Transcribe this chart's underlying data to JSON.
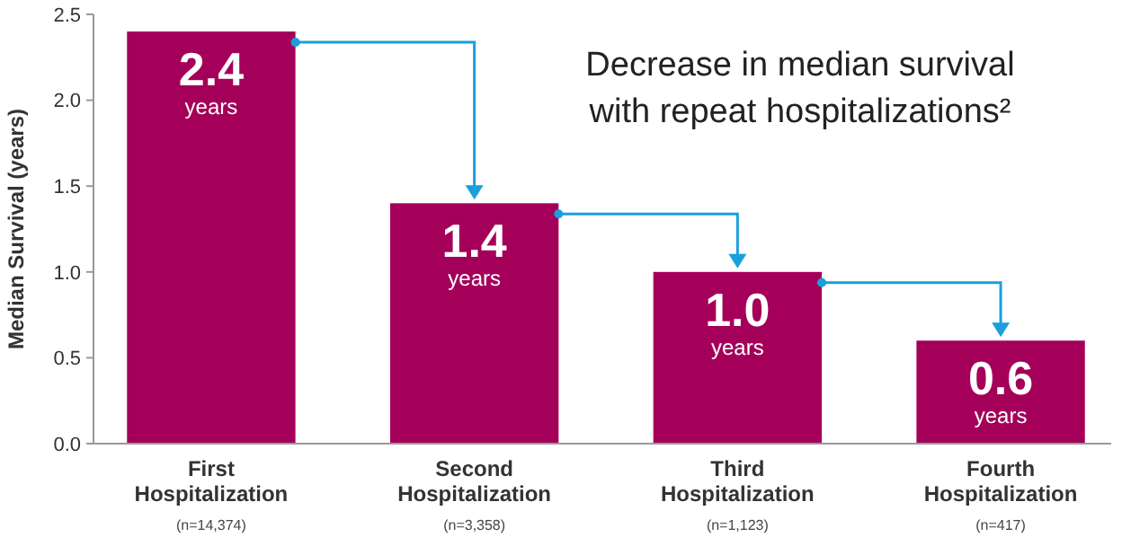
{
  "chart_data": {
    "type": "bar",
    "title": "Decrease in median survival with repeat hospitalizations²",
    "ylabel": "Median Survival (years)",
    "categories": [
      "First Hospitalization",
      "Second Hospitalization",
      "Third Hospitalization",
      "Fourth Hospitalization"
    ],
    "values": [
      2.4,
      1.4,
      1.0,
      0.6
    ],
    "color": "#a4005a",
    "value_labels": [
      "2.4 years",
      "1.4 years",
      "1.0 years",
      "0.6 years"
    ],
    "ylim": [
      0,
      2.5
    ],
    "yticks": [
      {
        "value": 0,
        "label": "0.0"
      },
      {
        "value": 0.5,
        "label": "0.5"
      },
      {
        "value": 1,
        "label": "1.0"
      },
      {
        "value": 1.5,
        "label": "1.5"
      },
      {
        "value": 2,
        "label": "2.0"
      },
      {
        "value": 2.5,
        "label": "2.5"
      }
    ],
    "grid": false,
    "annotations": [
      "(n=14,374)",
      "(n=3,358)",
      "(n=1,123)",
      "(n=417)"
    ]
  }
}
